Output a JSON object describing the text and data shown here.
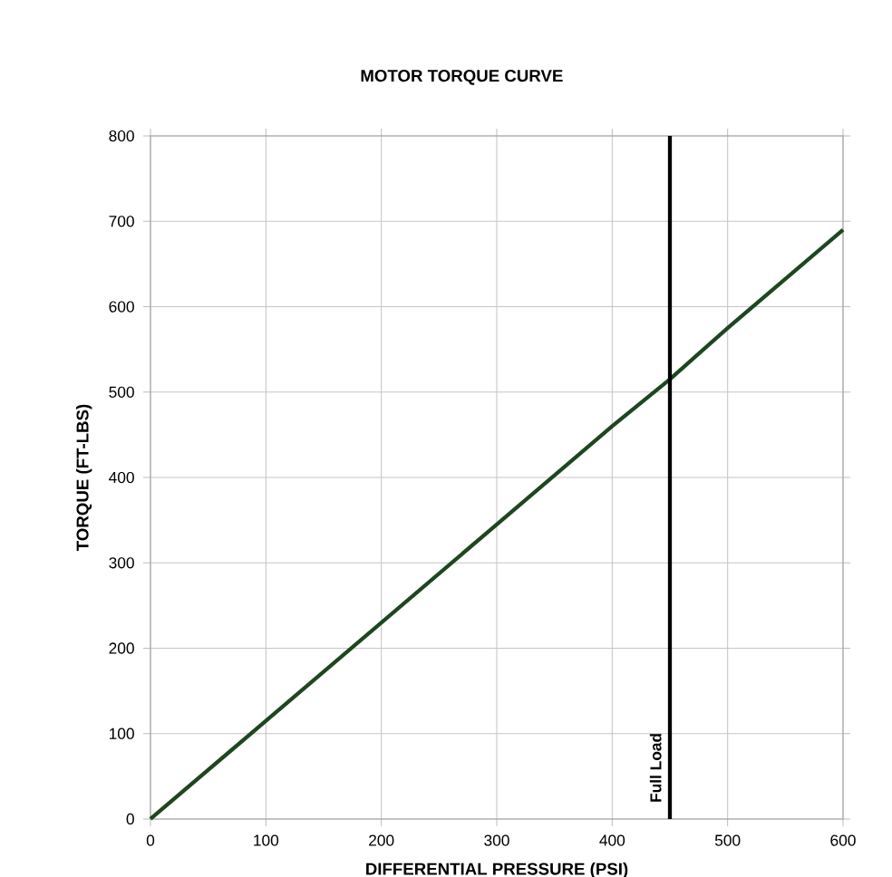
{
  "chart_data": {
    "type": "line",
    "title": "MOTOR TORQUE CURVE",
    "xlabel": "DIFFERENTIAL PRESSURE (PSI)",
    "ylabel": "TORQUE (FT-LBS)",
    "x": [
      0,
      100,
      200,
      300,
      400,
      450,
      500,
      600
    ],
    "values": [
      0,
      115,
      230,
      345,
      460,
      515,
      575,
      690
    ],
    "color": "#1e4620",
    "xlim": [
      0,
      600
    ],
    "ylim": [
      0,
      800
    ],
    "xticks": [
      0,
      100,
      200,
      300,
      400,
      500,
      600
    ],
    "yticks": [
      0,
      100,
      200,
      300,
      400,
      500,
      600,
      700,
      800
    ],
    "grid": true,
    "ref_lines": [
      {
        "axis": "x",
        "value": 450,
        "label": "Full Load",
        "color": "#000000"
      }
    ]
  }
}
